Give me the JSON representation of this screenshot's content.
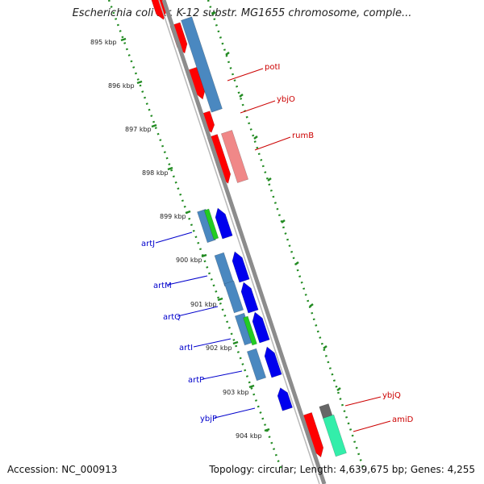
{
  "header": {
    "title": "Escherichia coli str. K-12 substr. MG1655 chromosome, comple..."
  },
  "footer": {
    "accession": "Accession: NC_000913",
    "stats": "Topology: circular; Length: 4,639,675 bp; Genes: 4,255"
  },
  "colors": {
    "backbone": "#888888",
    "forward_genes": "#ff0000",
    "reverse_genes": "#0000ee",
    "forward_label": "#cc0000",
    "reverse_label": "#0000cc",
    "tick": "#228b22",
    "cds": "#4a88c0",
    "rna": "#22cc22",
    "pseudo": "#ff8888"
  },
  "map": {
    "tick_labels": [
      "895 kbp",
      "896 kbp",
      "897 kbp",
      "898 kbp",
      "899 kbp",
      "900 kbp",
      "901 kbp",
      "902 kbp",
      "903 kbp",
      "904 kbp"
    ],
    "forward_labels": [
      "potI",
      "ybjO",
      "rumB",
      "ybjQ",
      "amiD"
    ],
    "reverse_labels": [
      "artJ",
      "artM",
      "artQ",
      "artI",
      "artP",
      "ybjP"
    ]
  }
}
